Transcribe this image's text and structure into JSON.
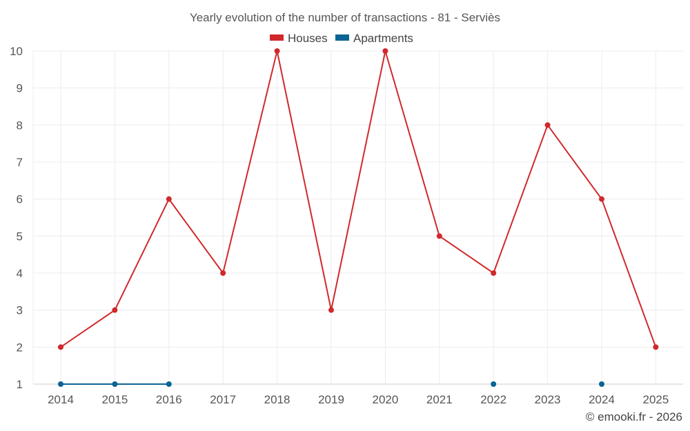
{
  "chart_data": {
    "type": "line",
    "title": "Yearly evolution of the number of transactions - 81 - Serviès",
    "categories": [
      "2014",
      "2015",
      "2016",
      "2017",
      "2018",
      "2019",
      "2020",
      "2021",
      "2022",
      "2023",
      "2024",
      "2025"
    ],
    "series": [
      {
        "name": "Houses",
        "color": "#d0282b",
        "values": [
          2,
          3,
          6,
          4,
          10,
          3,
          10,
          5,
          4,
          8,
          6,
          2
        ]
      },
      {
        "name": "Apartments",
        "color": "#0a6494",
        "values": [
          1,
          1,
          1,
          null,
          null,
          null,
          null,
          null,
          1,
          null,
          1,
          null
        ]
      }
    ],
    "ylim": [
      1,
      10
    ],
    "yticks": [
      1,
      2,
      3,
      4,
      5,
      6,
      7,
      8,
      9,
      10
    ],
    "legend_position": "top-center",
    "grid": true
  },
  "credit": "© emooki.fr - 2026"
}
